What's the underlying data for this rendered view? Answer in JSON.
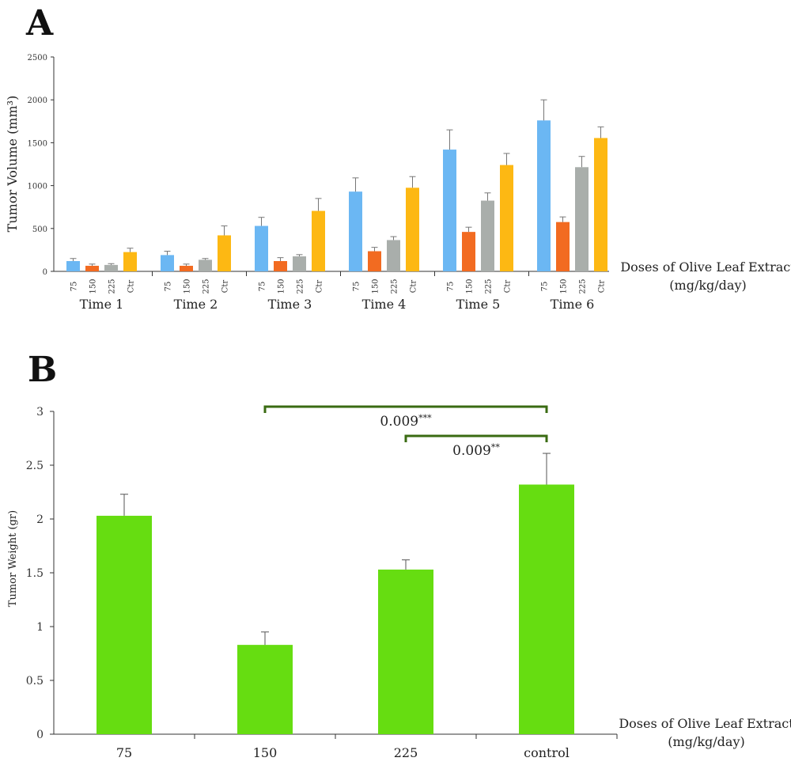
{
  "chart_data": [
    {
      "panel": "A",
      "type": "bar",
      "ylabel": "Tumor Volume (mm³)",
      "xlabel_line1": "Doses of Olive Leaf Extract",
      "xlabel_line2": "(mg/kg/day)",
      "ylim": [
        0,
        2500
      ],
      "yticks": [
        "0",
        "500",
        "1000",
        "1500",
        "2000",
        "2500"
      ],
      "groups": [
        "Time 1",
        "Time 2",
        "Time 3",
        "Time 4",
        "Time 5",
        "Time 6"
      ],
      "dose_labels": [
        "75",
        "150",
        "225",
        "Ctr"
      ],
      "colors": [
        "#6bb7f3",
        "#f26b21",
        "#a9aeab",
        "#fdb813"
      ],
      "series": [
        {
          "dose": "75",
          "values": [
            120,
            190,
            530,
            930,
            1420,
            1760
          ],
          "errors": [
            30,
            45,
            100,
            160,
            230,
            240
          ]
        },
        {
          "dose": "150",
          "values": [
            65,
            65,
            120,
            235,
            460,
            575
          ],
          "errors": [
            20,
            20,
            40,
            45,
            55,
            60
          ]
        },
        {
          "dose": "225",
          "values": [
            75,
            135,
            175,
            365,
            825,
            1215
          ],
          "errors": [
            15,
            15,
            20,
            40,
            90,
            125
          ]
        },
        {
          "dose": "Ctr",
          "values": [
            225,
            420,
            705,
            975,
            1240,
            1555
          ],
          "errors": [
            45,
            110,
            145,
            130,
            135,
            130
          ]
        }
      ]
    },
    {
      "panel": "B",
      "type": "bar",
      "ylabel": "Tumor Weight (gr)",
      "xlabel_line1": "Doses of Olive Leaf Extract",
      "xlabel_line2": "(mg/kg/day)",
      "ylim": [
        0,
        3
      ],
      "yticks": [
        "0",
        "0.5",
        "1",
        "1.5",
        "2",
        "2.5",
        "3"
      ],
      "categories": [
        "75",
        "150",
        "225",
        "control"
      ],
      "values": [
        2.03,
        0.83,
        1.53,
        2.32
      ],
      "errors": [
        0.2,
        0.12,
        0.09,
        0.29
      ],
      "color": "#66dd11",
      "annotations": [
        {
          "from": "150",
          "to": "control",
          "text": "0.009",
          "stars": "***"
        },
        {
          "from": "225",
          "to": "control",
          "text": "0.009",
          "stars": "**"
        }
      ],
      "bracket_color": "#3a6b12"
    }
  ]
}
